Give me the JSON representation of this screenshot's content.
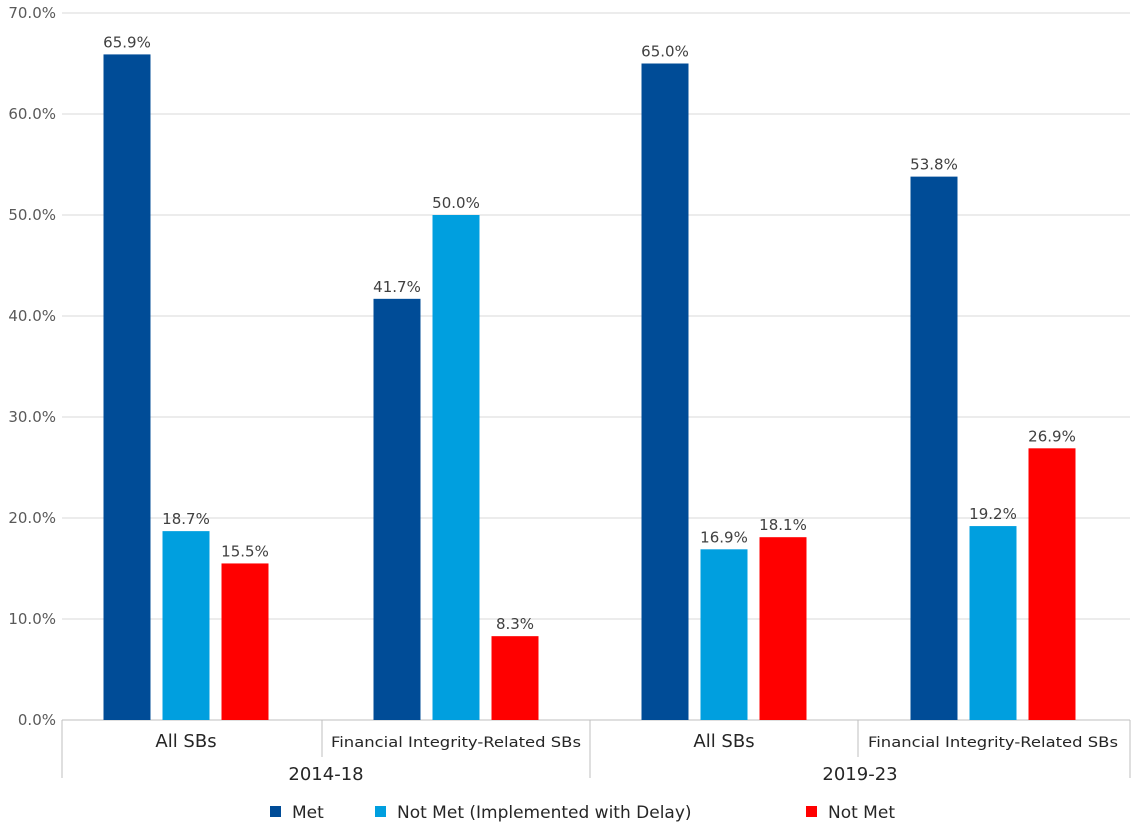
{
  "chart_data": {
    "type": "bar",
    "title": "",
    "xlabel": "",
    "ylabel": "",
    "ylim": [
      0,
      70
    ],
    "y_ticks": [
      "0.0%",
      "10.0%",
      "20.0%",
      "30.0%",
      "40.0%",
      "50.0%",
      "60.0%",
      "70.0%"
    ],
    "groups": [
      {
        "label": "2014-18",
        "categories": [
          "All SBs",
          "Financial Integrity-Related SBs"
        ]
      },
      {
        "label": "2019-23",
        "categories": [
          "All SBs",
          "Financial Integrity-Related SBs"
        ]
      }
    ],
    "categories": [
      "All SBs",
      "Financial Integrity-Related SBs",
      "All SBs",
      "Financial Integrity-Related SBs"
    ],
    "series": [
      {
        "name": "Met",
        "color": "#004C97",
        "values": [
          65.9,
          41.7,
          65.0,
          53.8
        ],
        "labels": [
          "65.9%",
          "41.7%",
          "65.0%",
          "53.8%"
        ]
      },
      {
        "name": "Not Met (Implemented with Delay)",
        "color": "#009FDF",
        "values": [
          18.7,
          50.0,
          16.9,
          19.2
        ],
        "labels": [
          "18.7%",
          "50.0%",
          "16.9%",
          "19.2%"
        ]
      },
      {
        "name": "Not Met",
        "color": "#FF0000",
        "values": [
          15.5,
          8.3,
          18.1,
          26.9
        ],
        "labels": [
          "15.5%",
          "8.3%",
          "18.1%",
          "26.9%"
        ]
      }
    ],
    "grid": true,
    "legend_position": "bottom"
  }
}
